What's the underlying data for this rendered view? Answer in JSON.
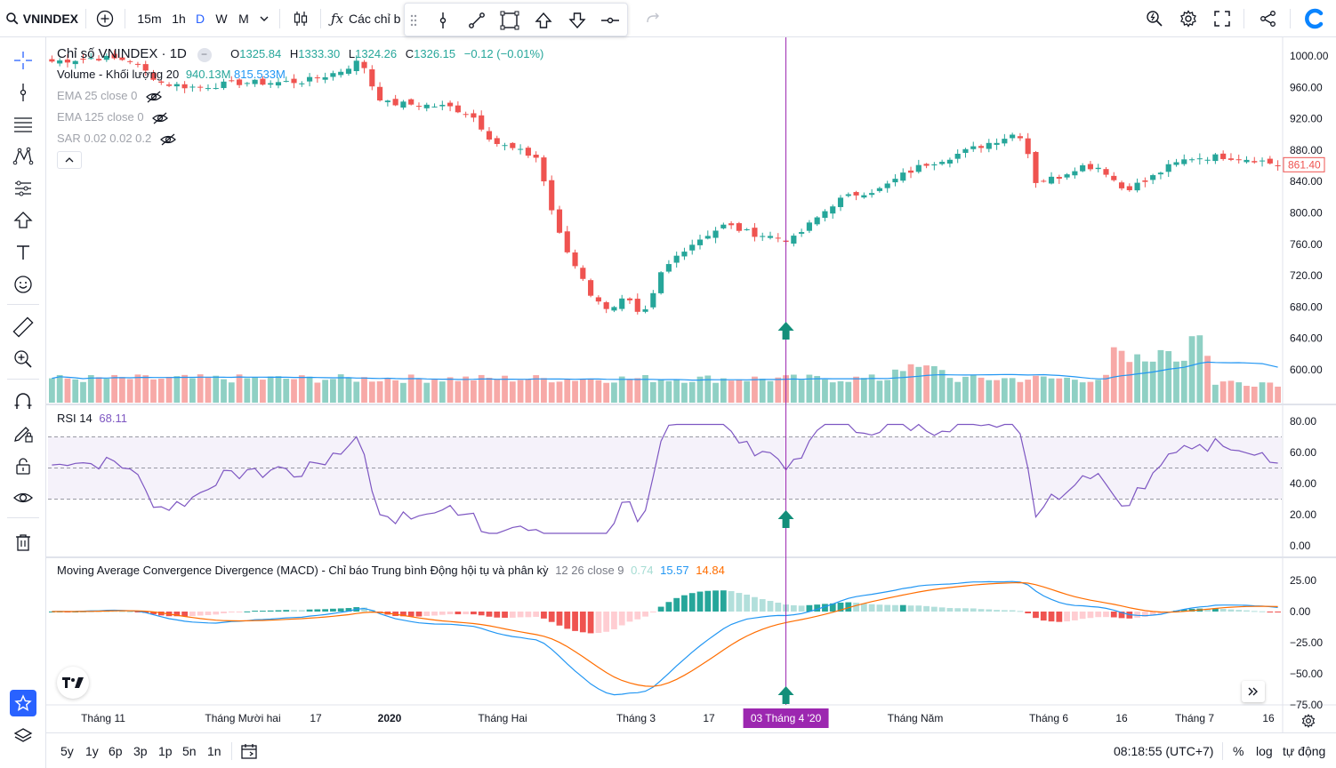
{
  "toolbar": {
    "symbol": "VNINDEX",
    "intervals": [
      "15m",
      "1h",
      "D",
      "W",
      "M"
    ],
    "active_interval": "D",
    "indicators_label": "Các chỉ b"
  },
  "legend": {
    "title": "Chỉ số VNINDEX · 1D",
    "open_label": "O",
    "open": "1325.84",
    "high_label": "H",
    "high": "1333.30",
    "low_label": "L",
    "low": "1324.26",
    "close_label": "C",
    "close": "1326.15",
    "change": "−0.12 (−0.01%)",
    "volume_label": "Volume - Khối lượng 20",
    "volume_value": "940.13M",
    "volume_ma": "815.533M",
    "ema25": "EMA 25 close 0",
    "ema125": "EMA 125 close 0",
    "sar": "SAR 0.02 0.02 0.2"
  },
  "price_axis": {
    "labels": [
      "1000.00",
      "960.00",
      "920.00",
      "880.00",
      "840.00",
      "800.00",
      "760.00",
      "720.00",
      "680.00",
      "640.00",
      "600.00"
    ],
    "last_price": "861.40"
  },
  "rsi": {
    "label": "RSI 14",
    "value": "68.11",
    "axis": [
      "80.00",
      "60.00",
      "40.00",
      "20.00",
      "0.00"
    ]
  },
  "macd": {
    "label": "Moving Average Convergence Divergence (MACD) - Chỉ báo Trung bình Động hội tụ và phân kỳ",
    "params": "12 26 close 9",
    "hist": "0.74",
    "macd": "15.57",
    "signal": "14.84",
    "axis": [
      "25.00",
      "0.00",
      "−25.00",
      "−50.00",
      "−75.00"
    ]
  },
  "time_axis": [
    "Tháng 11",
    "Tháng Mười hai",
    "17",
    "2020",
    "Tháng Hai",
    "Tháng 3",
    "17",
    "Tháng Năm",
    "Tháng 6",
    "16",
    "Tháng 7",
    "16"
  ],
  "crosshair_date": "03 Tháng 4 '20",
  "bottombar": {
    "ranges": [
      "5y",
      "1y",
      "6p",
      "3p",
      "1p",
      "5n",
      "1n"
    ],
    "time": "08:18:55 (UTC+7)",
    "percent": "%",
    "log": "log",
    "auto": "tự động"
  },
  "colors": {
    "up": "#26a69a",
    "down": "#ef5350",
    "up_vol": "#8fd0c4",
    "down_vol": "#f7a9a7",
    "crosshair": "#9c27b0",
    "rsi_line": "#7e57c2",
    "macd_line": "#2196f3",
    "signal_line": "#ff6d00",
    "arrow": "#138f7a"
  },
  "chart_data": {
    "type": "candlestick",
    "symbol": "VNINDEX",
    "interval": "1D",
    "price_path": [
      [
        0,
        993
      ],
      [
        0.05,
        998
      ],
      [
        0.1,
        990
      ],
      [
        0.16,
        962
      ],
      [
        0.22,
        960
      ],
      [
        0.28,
        966
      ],
      [
        0.33,
        966
      ],
      [
        0.38,
        970
      ],
      [
        0.43,
        985
      ],
      [
        0.455,
        997
      ],
      [
        0.47,
        965
      ],
      [
        0.49,
        940
      ],
      [
        0.52,
        935
      ],
      [
        0.55,
        940
      ],
      [
        0.58,
        935
      ],
      [
        0.6,
        900
      ],
      [
        0.62,
        890
      ],
      [
        0.64,
        880
      ],
      [
        0.66,
        875
      ],
      [
        0.7,
        815
      ],
      [
        0.72,
        770
      ],
      [
        0.74,
        730
      ],
      [
        0.765,
        700
      ],
      [
        0.78,
        665
      ],
      [
        0.8,
        690
      ],
      [
        0.825,
        685
      ],
      [
        0.84,
        660
      ],
      [
        0.86,
        720
      ],
      [
        0.88,
        750
      ],
      [
        0.91,
        770
      ],
      [
        0.93,
        785
      ],
      [
        0.95,
        760
      ],
      [
        0.97,
        770
      ],
      [
        0.99,
        765
      ],
      [
        1.0,
        758
      ]
    ],
    "price_path_2": [
      [
        0,
        758
      ],
      [
        0.05,
        770
      ],
      [
        0.1,
        810
      ],
      [
        0.15,
        826
      ],
      [
        0.2,
        830
      ],
      [
        0.25,
        850
      ],
      [
        0.3,
        865
      ],
      [
        0.35,
        880
      ],
      [
        0.4,
        890
      ],
      [
        0.42,
        895
      ],
      [
        0.45,
        890
      ],
      [
        0.47,
        835
      ],
      [
        0.5,
        850
      ],
      [
        0.55,
        860
      ],
      [
        0.6,
        855
      ],
      [
        0.65,
        820
      ],
      [
        0.7,
        835
      ],
      [
        0.75,
        865
      ],
      [
        0.85,
        873
      ],
      [
        0.92,
        870
      ],
      [
        1.0,
        861
      ]
    ],
    "rsi_reference": [
      70,
      50,
      30
    ],
    "macd_visible_range": [
      -75,
      25
    ]
  }
}
